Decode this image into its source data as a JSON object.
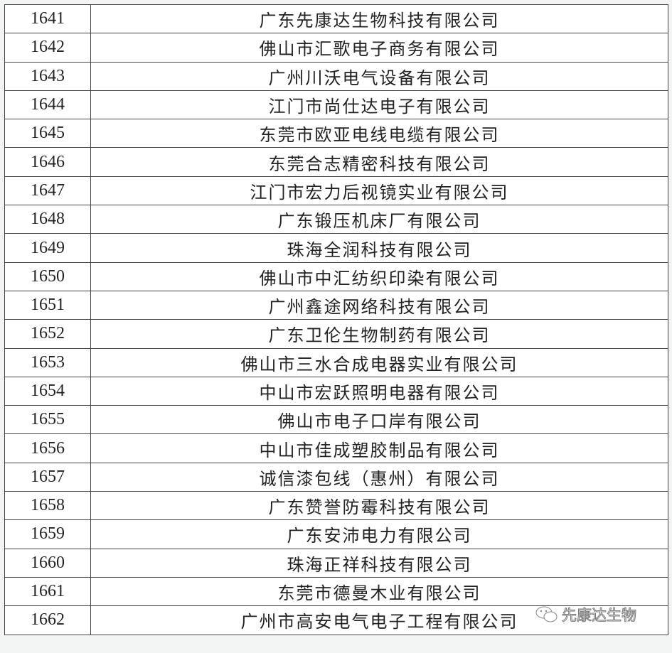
{
  "rows": [
    {
      "no": "1641",
      "name": "广东先康达生物科技有限公司"
    },
    {
      "no": "1642",
      "name": "佛山市汇歌电子商务有限公司"
    },
    {
      "no": "1643",
      "name": "广州川沃电气设备有限公司"
    },
    {
      "no": "1644",
      "name": "江门市尚仕达电子有限公司"
    },
    {
      "no": "1645",
      "name": "东莞市欧亚电线电缆有限公司"
    },
    {
      "no": "1646",
      "name": "东莞合志精密科技有限公司"
    },
    {
      "no": "1647",
      "name": "江门市宏力后视镜实业有限公司"
    },
    {
      "no": "1648",
      "name": "广东锻压机床厂有限公司"
    },
    {
      "no": "1649",
      "name": "珠海全润科技有限公司"
    },
    {
      "no": "1650",
      "name": "佛山市中汇纺织印染有限公司"
    },
    {
      "no": "1651",
      "name": "广州鑫途网络科技有限公司"
    },
    {
      "no": "1652",
      "name": "广东卫伦生物制药有限公司"
    },
    {
      "no": "1653",
      "name": "佛山市三水合成电器实业有限公司"
    },
    {
      "no": "1654",
      "name": "中山市宏跃照明电器有限公司"
    },
    {
      "no": "1655",
      "name": "佛山市电子口岸有限公司"
    },
    {
      "no": "1656",
      "name": "中山市佳成塑胶制品有限公司"
    },
    {
      "no": "1657",
      "name": "诚信漆包线（惠州）有限公司"
    },
    {
      "no": "1658",
      "name": "广东赞誉防霉科技有限公司"
    },
    {
      "no": "1659",
      "name": "广东安沛电力有限公司"
    },
    {
      "no": "1660",
      "name": "珠海正祥科技有限公司"
    },
    {
      "no": "1661",
      "name": "东莞市德曼木业有限公司"
    },
    {
      "no": "1662",
      "name": "广州市高安电气电子工程有限公司"
    }
  ],
  "watermark": {
    "icon": "wechat-icon",
    "text": "先康达生物"
  }
}
